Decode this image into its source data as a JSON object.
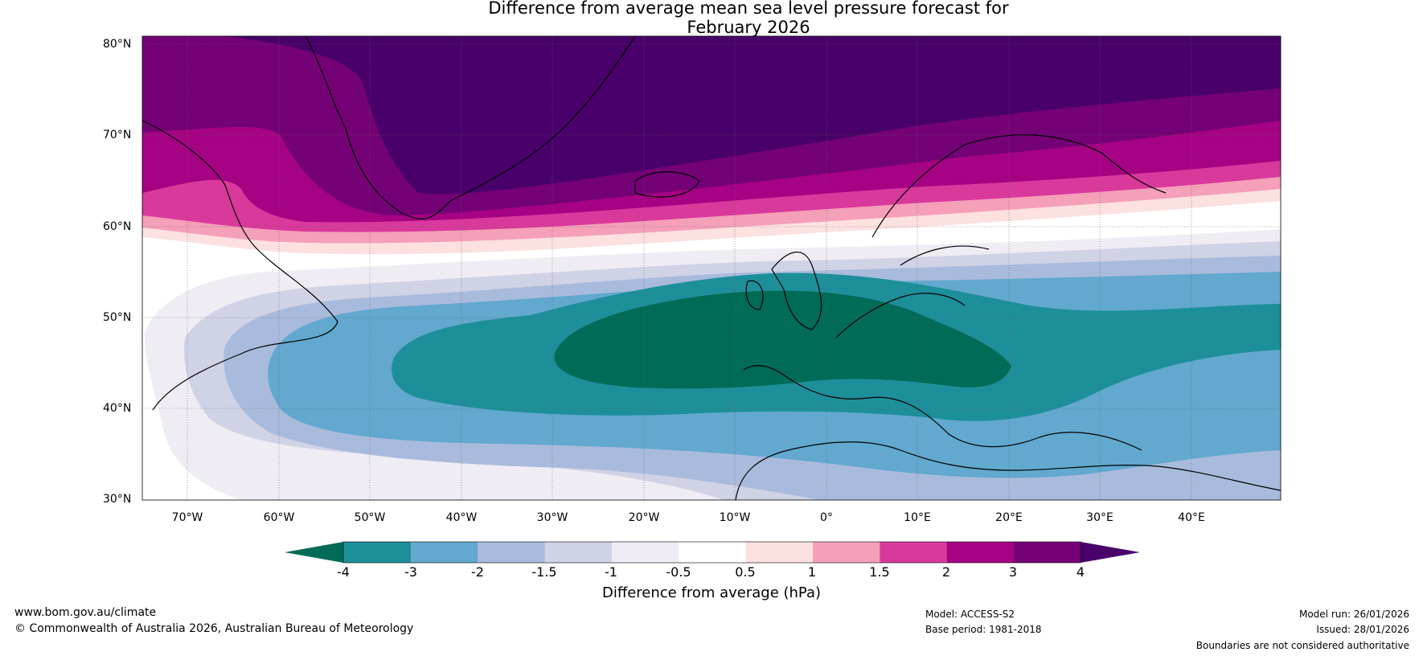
{
  "title": {
    "line1": "Difference from average mean sea level pressure forecast for",
    "line2": "February 2026"
  },
  "axes": {
    "lat_labels": [
      "80°N",
      "70°N",
      "60°N",
      "50°N",
      "40°N",
      "30°N"
    ],
    "lon_labels": [
      "70°W",
      "60°W",
      "50°W",
      "40°W",
      "30°W",
      "20°W",
      "10°W",
      "0°",
      "10°E",
      "20°E",
      "30°E",
      "40°E"
    ]
  },
  "colorbar": {
    "tick_labels": [
      "-4",
      "-3",
      "-2",
      "-1.5",
      "-1",
      "-0.5",
      "0.5",
      "1",
      "1.5",
      "2",
      "3",
      "4"
    ],
    "title": "Difference from average (hPa)",
    "colors": {
      "below": "#006b57",
      "bins": [
        "#1d8f9a",
        "#62a8cf",
        "#a9bbdc",
        "#d0d2e6",
        "#f0ecf4",
        "#ffffff",
        "#fde0e0",
        "#f59fb9",
        "#d9399b",
        "#a60284",
        "#750176"
      ],
      "above": "#49006a"
    }
  },
  "footer": {
    "website": "www.bom.gov.au/climate",
    "copyright": "© Commonwealth of Australia 2026, Australian Bureau of Meteorology",
    "model": "Model: ACCESS-S2",
    "base_period": "Base period: 1981-2018",
    "model_run": "Model run: 26/01/2026",
    "issued": "Issued: 28/01/2026",
    "disclaimer": "Boundaries are not considered authoritative"
  }
}
